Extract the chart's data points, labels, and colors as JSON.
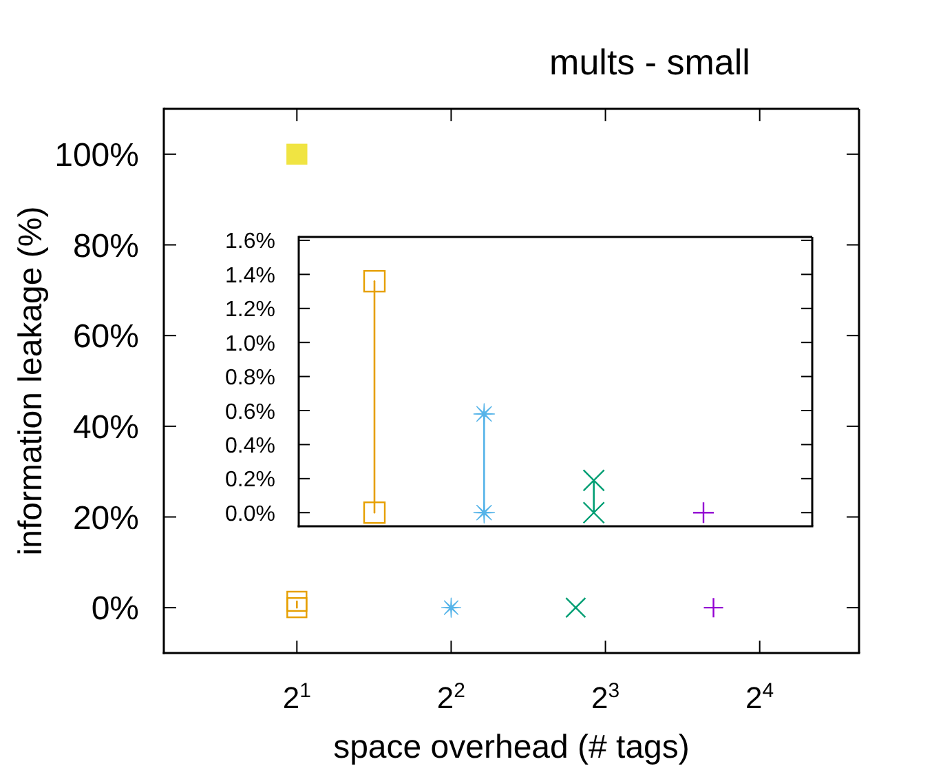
{
  "chart_data": [
    {
      "type": "scatter",
      "title": "mults - small",
      "xlabel": "space overhead (# tags)",
      "ylabel": "information leakage (%)",
      "log": "x",
      "xlim": [
        1.1,
        25
      ],
      "xticks": [
        {
          "value": 2,
          "label": "2$^{1}$"
        },
        {
          "value": 4,
          "label": "2$^{2}$"
        },
        {
          "value": 8,
          "label": "2$^{3}$"
        },
        {
          "value": 16,
          "label": "2$^{4}$"
        }
      ],
      "ylim": [
        -10,
        110
      ],
      "yticks": [
        {
          "value": 0,
          "label": "0%"
        },
        {
          "value": 20,
          "label": "20%"
        },
        {
          "value": 40,
          "label": "40%"
        },
        {
          "value": 60,
          "label": "60%"
        },
        {
          "value": 80,
          "label": "80%"
        },
        {
          "value": 100,
          "label": "100%"
        }
      ],
      "series": [
        {
          "type": "scatter",
          "color": "#f0e442",
          "marker": "square",
          "x": [
            2
          ],
          "values": [
            100
          ]
        },
        {
          "type": "line",
          "color": "#e69f00",
          "marker": "square",
          "x": [
            2,
            2
          ],
          "values": [
            0,
            1.4
          ]
        },
        {
          "type": "scatter",
          "color": "#56b4e9",
          "marker": "star",
          "x": [
            4
          ],
          "values": [
            0
          ]
        },
        {
          "type": "scatter",
          "color": "#009e73",
          "x": [
            7
          ],
          "values": [
            0
          ]
        },
        {
          "type": "scatter",
          "color": "#9400d3",
          "marker": "cross",
          "x": [
            13
          ],
          "values": [
            0
          ]
        }
      ]
    },
    {
      "type": "lollipop",
      "categories": [
        null,
        null,
        null,
        null
      ],
      "ylim": [
        -0.08,
        1.62
      ],
      "yticks": [
        {
          "value": 0,
          "label": "0.0%"
        },
        {
          "value": 0.2,
          "label": "0.2%"
        },
        {
          "value": 0.4,
          "label": "0.4%"
        },
        {
          "value": 0.6,
          "label": "0.6%"
        },
        {
          "value": 0.8,
          "label": "0.8%"
        },
        {
          "value": 1.0,
          "label": "1.0%"
        },
        {
          "value": 1.2,
          "label": "1.2%"
        },
        {
          "value": 1.4,
          "label": "1.4%"
        },
        {
          "value": 1.6,
          "label": "1.6%"
        }
      ],
      "series": [
        {
          "type": "lollipop",
          "color": "#e69f00",
          "marker": "square",
          "values": [
            1.36,
            null,
            null,
            null
          ]
        },
        {
          "type": "scatter",
          "color": "#e69f00",
          "marker": "square",
          "values": [
            0,
            null,
            null,
            null
          ]
        },
        {
          "type": "lollipop",
          "color": "#56b4e9",
          "marker": "star",
          "values": [
            null,
            0.58,
            null,
            null
          ]
        },
        {
          "type": "scatter",
          "color": "#56b4e9",
          "marker": "star",
          "values": [
            null,
            0,
            null,
            null
          ]
        },
        {
          "type": "lollipop",
          "color": "#009e73",
          "values": [
            null,
            null,
            0.19,
            null
          ]
        },
        {
          "type": "scatter",
          "color": "#009e73",
          "values": [
            null,
            null,
            0,
            null
          ]
        },
        {
          "type": "scatter",
          "color": "#9400d3",
          "marker": "cross",
          "values": [
            null,
            null,
            null,
            0
          ]
        }
      ]
    }
  ]
}
